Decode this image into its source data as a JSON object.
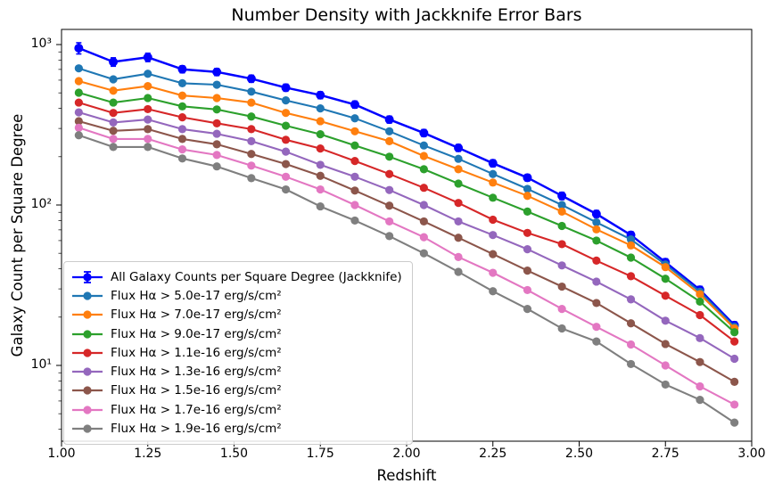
{
  "chart_data": {
    "type": "line",
    "title": "Number Density with Jackknife Error Bars",
    "xlabel": "Redshift",
    "ylabel": "Galaxy Count per Square Degree",
    "yscale": "log",
    "grid": false,
    "legend_position": "lower left",
    "xlim": [
      1.0,
      3.0
    ],
    "ylim": [
      3.37,
      1243
    ],
    "x_ticks": [
      {
        "value": 1.0,
        "label": "1.00"
      },
      {
        "value": 1.25,
        "label": "1.25"
      },
      {
        "value": 1.5,
        "label": "1.50"
      },
      {
        "value": 1.75,
        "label": "1.75"
      },
      {
        "value": 2.0,
        "label": "2.00"
      },
      {
        "value": 2.25,
        "label": "2.25"
      },
      {
        "value": 2.5,
        "label": "2.50"
      },
      {
        "value": 2.75,
        "label": "2.75"
      },
      {
        "value": 3.0,
        "label": "3.00"
      }
    ],
    "y_ticks": [
      {
        "value": 1000,
        "label": "10³"
      },
      {
        "value": 100,
        "label": "10²"
      },
      {
        "value": 10,
        "label": "10¹"
      }
    ],
    "x": [
      1.05,
      1.15,
      1.25,
      1.35,
      1.45,
      1.55,
      1.65,
      1.75,
      1.85,
      1.95,
      2.05,
      2.15,
      2.25,
      2.35,
      2.45,
      2.55,
      2.65,
      2.75,
      2.85,
      2.95
    ],
    "series": [
      {
        "name": "All Galaxy Counts per Square Degree (Jackknife)",
        "color": "#0000ff",
        "has_error_bars": true,
        "values": [
          950,
          780,
          833,
          702,
          675,
          613,
          539,
          484,
          423,
          341,
          281,
          227,
          182,
          148,
          114,
          88,
          65,
          44,
          29.6,
          17.8
        ],
        "yerr": [
          76,
          47,
          50,
          35,
          34,
          31,
          27,
          24,
          21,
          17,
          14,
          11,
          9,
          7,
          6,
          4.4,
          3.3,
          2.2,
          1.5,
          0.9
        ]
      },
      {
        "name": "Flux Hα > 5.0e-17 erg/s/cm²",
        "color": "#1f77b4",
        "has_error_bars": false,
        "values": [
          711,
          607,
          658,
          574,
          562,
          509,
          449,
          400,
          347,
          288,
          235,
          194,
          156,
          126,
          100,
          78,
          61,
          42.6,
          28.8,
          17.4
        ]
      },
      {
        "name": "Flux Hα > 7.0e-17 erg/s/cm²",
        "color": "#ff7f0e",
        "has_error_bars": false,
        "values": [
          592,
          516,
          551,
          481,
          464,
          435,
          375,
          333,
          288,
          250,
          202,
          167,
          138,
          114,
          91,
          70.5,
          56,
          41,
          27.8,
          17.0
        ]
      },
      {
        "name": "Flux Hα > 9.0e-17 erg/s/cm²",
        "color": "#2ca02c",
        "has_error_bars": false,
        "values": [
          501,
          435,
          464,
          412,
          394,
          356,
          312,
          276,
          235,
          200,
          167,
          136,
          111,
          91,
          74,
          60,
          47,
          34.7,
          25,
          16.1
        ]
      },
      {
        "name": "Flux Hα > 1.1e-16 erg/s/cm²",
        "color": "#d62728",
        "has_error_bars": false,
        "values": [
          435,
          375,
          396,
          352,
          323,
          297,
          255,
          225,
          188,
          156,
          128,
          103,
          81,
          67,
          57,
          45,
          36,
          27.2,
          20.6,
          14.1
        ]
      },
      {
        "name": "Flux Hα > 1.3e-16 erg/s/cm²",
        "color": "#9467bd",
        "has_error_bars": false,
        "values": [
          378,
          327,
          341,
          297,
          278,
          250,
          215,
          178,
          150,
          124,
          100,
          79,
          65,
          53,
          42,
          33.3,
          25.8,
          19,
          14.8,
          11.0
        ]
      },
      {
        "name": "Flux Hα > 1.5e-16 erg/s/cm²",
        "color": "#8c564b",
        "has_error_bars": false,
        "values": [
          333,
          290,
          297,
          258,
          239,
          208,
          180,
          152,
          123,
          99,
          79,
          62.5,
          49.4,
          39,
          31,
          24.5,
          18.3,
          13.6,
          10.5,
          7.9
        ]
      },
      {
        "name": "Flux Hα > 1.7e-16 erg/s/cm²",
        "color": "#e377c2",
        "has_error_bars": false,
        "values": [
          303,
          258,
          258,
          222,
          205,
          176,
          150,
          125,
          100,
          79,
          63,
          47.4,
          37.8,
          29.5,
          22.5,
          17.4,
          13.5,
          10,
          7.4,
          5.7
        ]
      },
      {
        "name": "Flux Hα > 1.9e-16 erg/s/cm²",
        "color": "#7f7f7f",
        "has_error_bars": false,
        "values": [
          272,
          230,
          230,
          195,
          174,
          147,
          125,
          98,
          80,
          64,
          50,
          38.3,
          29,
          22.5,
          17,
          14.1,
          10.2,
          7.6,
          6.1,
          4.4
        ]
      }
    ]
  }
}
